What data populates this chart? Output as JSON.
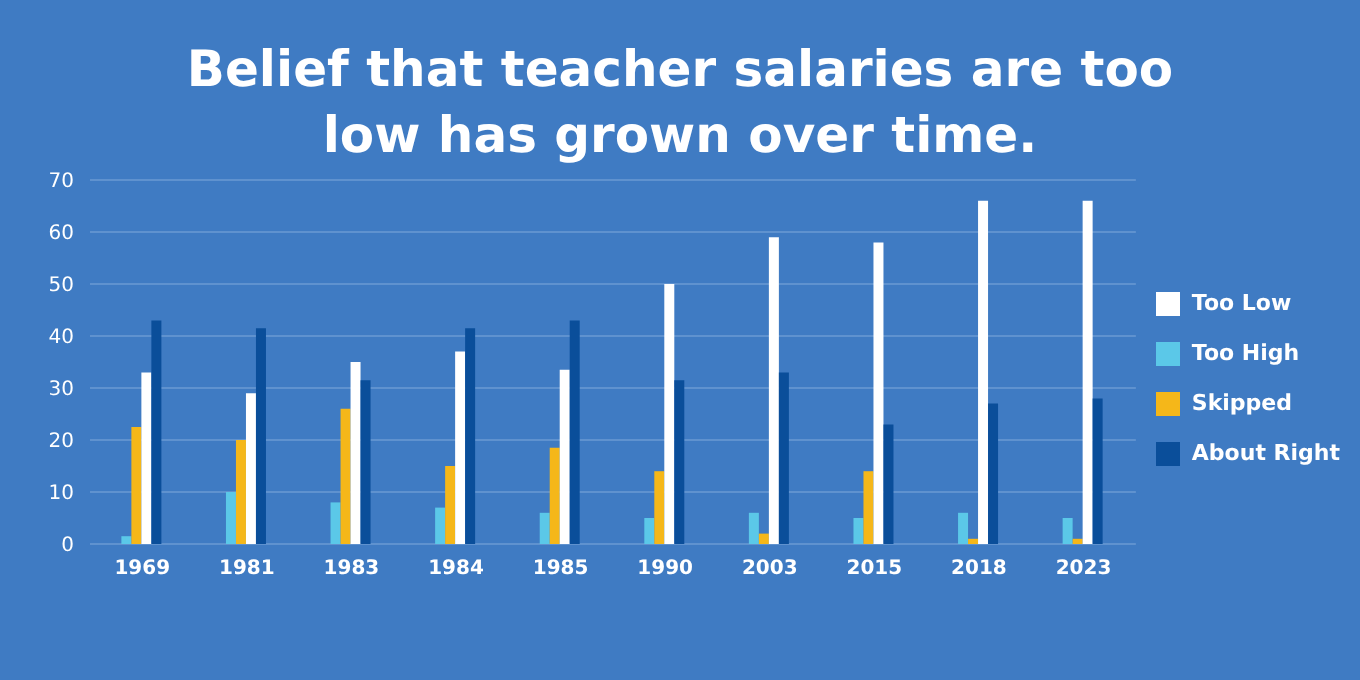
{
  "chart_data": {
    "type": "bar",
    "title": "Belief that teacher salaries are too low has grown over time.",
    "categories": [
      "1969",
      "1981",
      "1983",
      "1984",
      "1985",
      "1990",
      "2003",
      "2015",
      "2018",
      "2023"
    ],
    "series": [
      {
        "name": "Too High",
        "color": "#5bc8e8",
        "values": [
          1.5,
          10,
          8,
          7,
          6,
          5,
          6,
          5,
          6,
          5
        ]
      },
      {
        "name": "Skipped",
        "color": "#f5b719",
        "values": [
          22.5,
          20,
          26,
          15,
          18.5,
          14,
          2,
          14,
          1,
          1
        ]
      },
      {
        "name": "Too Low",
        "color": "#ffffff",
        "values": [
          33,
          29,
          35,
          37,
          33.5,
          50,
          59,
          58,
          66,
          66
        ]
      },
      {
        "name": "About Right",
        "color": "#0a4e9a",
        "values": [
          43,
          41.5,
          31.5,
          41.5,
          43,
          31.5,
          33,
          23,
          27,
          28
        ]
      }
    ],
    "ylim": [
      0,
      70
    ],
    "yticks": [
      0,
      10,
      20,
      30,
      40,
      50,
      60,
      70
    ],
    "grid": "y",
    "legend": "right"
  }
}
